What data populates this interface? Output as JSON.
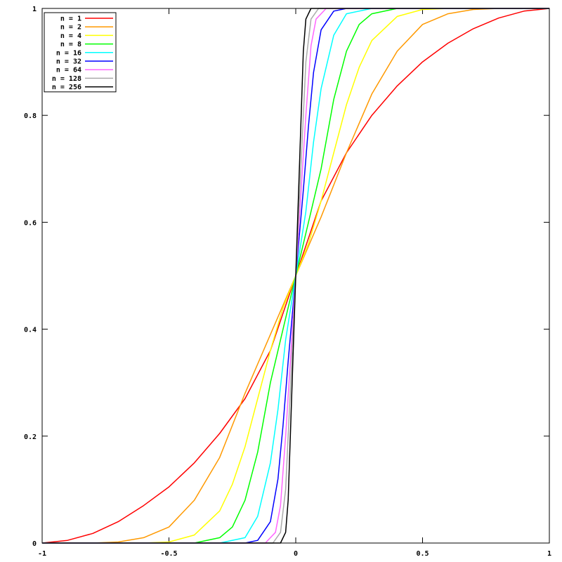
{
  "chart_data": {
    "type": "line",
    "title": "",
    "xlabel": "",
    "ylabel": "",
    "xlim": [
      -1,
      1
    ],
    "ylim": [
      0,
      1
    ],
    "grid": false,
    "legend_position": "top-left",
    "x_ticks": [
      {
        "value": -1,
        "label": "-1"
      },
      {
        "value": -0.5,
        "label": "-0.5"
      },
      {
        "value": 0,
        "label": "0"
      },
      {
        "value": 0.5,
        "label": "0.5"
      },
      {
        "value": 1,
        "label": "1"
      }
    ],
    "y_ticks": [
      {
        "value": 0,
        "label": "0"
      },
      {
        "value": 0.2,
        "label": "0.2"
      },
      {
        "value": 0.4,
        "label": "0.4"
      },
      {
        "value": 0.6,
        "label": "0.6"
      },
      {
        "value": 0.8,
        "label": "0.8"
      },
      {
        "value": 1,
        "label": "1"
      }
    ],
    "series": [
      {
        "name": "n = 1",
        "color": "#ff0000",
        "x": [
          -1,
          -0.9,
          -0.8,
          -0.7,
          -0.6,
          -0.5,
          -0.4,
          -0.3,
          -0.2,
          -0.1,
          0,
          0.1,
          0.2,
          0.3,
          0.4,
          0.5,
          0.6,
          0.7,
          0.8,
          0.9,
          1
        ],
        "y": [
          0,
          0.005,
          0.018,
          0.04,
          0.07,
          0.105,
          0.15,
          0.205,
          0.27,
          0.36,
          0.5,
          0.64,
          0.73,
          0.8,
          0.855,
          0.9,
          0.935,
          0.962,
          0.982,
          0.995,
          1
        ]
      },
      {
        "name": "n = 2",
        "color": "#ff9900",
        "x": [
          -1,
          -0.8,
          -0.7,
          -0.6,
          -0.5,
          -0.4,
          -0.3,
          -0.2,
          -0.1,
          0,
          0.1,
          0.2,
          0.3,
          0.4,
          0.5,
          0.6,
          0.7,
          0.8,
          1
        ],
        "y": [
          0,
          0.0,
          0.002,
          0.01,
          0.03,
          0.08,
          0.16,
          0.28,
          0.39,
          0.5,
          0.61,
          0.73,
          0.84,
          0.92,
          0.97,
          0.99,
          0.998,
          1.0,
          1
        ]
      },
      {
        "name": "n = 4",
        "color": "#ffff00",
        "x": [
          -1,
          -0.6,
          -0.5,
          -0.4,
          -0.3,
          -0.25,
          -0.2,
          -0.15,
          -0.1,
          -0.05,
          0,
          0.05,
          0.1,
          0.15,
          0.2,
          0.25,
          0.3,
          0.4,
          0.5,
          0.6,
          1
        ],
        "y": [
          0,
          0,
          0.002,
          0.015,
          0.06,
          0.11,
          0.18,
          0.27,
          0.36,
          0.44,
          0.5,
          0.56,
          0.64,
          0.73,
          0.82,
          0.89,
          0.94,
          0.985,
          0.998,
          1,
          1
        ]
      },
      {
        "name": "n = 8",
        "color": "#00ff00",
        "x": [
          -1,
          -0.4,
          -0.3,
          -0.25,
          -0.2,
          -0.15,
          -0.1,
          -0.05,
          0,
          0.05,
          0.1,
          0.15,
          0.2,
          0.25,
          0.3,
          0.4,
          1
        ],
        "y": [
          0,
          0,
          0.01,
          0.03,
          0.08,
          0.17,
          0.3,
          0.4,
          0.5,
          0.6,
          0.7,
          0.83,
          0.92,
          0.97,
          0.99,
          1,
          1
        ]
      },
      {
        "name": "n = 16",
        "color": "#00ffff",
        "x": [
          -1,
          -0.3,
          -0.2,
          -0.15,
          -0.1,
          -0.07,
          -0.04,
          0,
          0.04,
          0.07,
          0.1,
          0.15,
          0.2,
          0.3,
          1
        ],
        "y": [
          0,
          0,
          0.01,
          0.05,
          0.15,
          0.25,
          0.38,
          0.5,
          0.62,
          0.75,
          0.85,
          0.95,
          0.99,
          1,
          1
        ]
      },
      {
        "name": "n = 32",
        "color": "#0000ff",
        "x": [
          -1,
          -0.2,
          -0.15,
          -0.1,
          -0.07,
          -0.05,
          -0.03,
          0,
          0.03,
          0.05,
          0.07,
          0.1,
          0.15,
          0.2,
          1
        ],
        "y": [
          0,
          0,
          0.005,
          0.04,
          0.12,
          0.22,
          0.34,
          0.5,
          0.66,
          0.78,
          0.88,
          0.96,
          0.995,
          1,
          1
        ]
      },
      {
        "name": "n = 64",
        "color": "#ff66ff",
        "x": [
          -1,
          -0.12,
          -0.08,
          -0.06,
          -0.04,
          -0.02,
          0,
          0.02,
          0.04,
          0.06,
          0.08,
          0.12,
          1
        ],
        "y": [
          0,
          0,
          0.02,
          0.07,
          0.2,
          0.35,
          0.5,
          0.65,
          0.8,
          0.93,
          0.98,
          1,
          1
        ]
      },
      {
        "name": "n = 128",
        "color": "#aaaaaa",
        "x": [
          -1,
          -0.09,
          -0.06,
          -0.04,
          -0.02,
          -0.01,
          0,
          0.01,
          0.02,
          0.04,
          0.06,
          0.09,
          1
        ],
        "y": [
          0,
          0,
          0.02,
          0.1,
          0.3,
          0.4,
          0.5,
          0.6,
          0.7,
          0.9,
          0.98,
          1,
          1
        ]
      },
      {
        "name": "n = 256",
        "color": "#000000",
        "x": [
          -1,
          -0.06,
          -0.04,
          -0.03,
          -0.02,
          -0.01,
          0,
          0.01,
          0.02,
          0.03,
          0.04,
          0.06,
          1
        ],
        "y": [
          0,
          0,
          0.02,
          0.08,
          0.22,
          0.36,
          0.5,
          0.64,
          0.78,
          0.92,
          0.98,
          1,
          1
        ]
      }
    ]
  }
}
